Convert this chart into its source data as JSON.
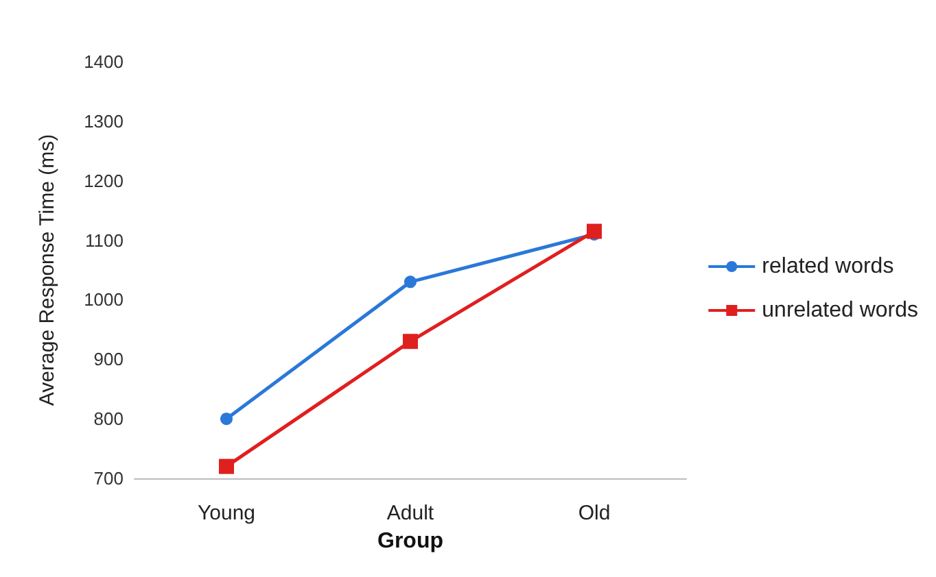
{
  "chart_data": {
    "type": "line",
    "xlabel": "Group",
    "ylabel": "Average Response Time (ms)",
    "categories": [
      "Young",
      "Adult",
      "Old"
    ],
    "series": [
      {
        "name": "related words",
        "color": "#2a78d8",
        "marker": "circle",
        "values": [
          800,
          1030,
          1110
        ]
      },
      {
        "name": "unrelated words",
        "color": "#e01f1f",
        "marker": "square",
        "values": [
          720,
          930,
          1115
        ]
      }
    ],
    "ylim": [
      700,
      1400
    ],
    "yticks": [
      700,
      800,
      900,
      1000,
      1100,
      1200,
      1300,
      1400
    ],
    "grid": false,
    "legend": "right"
  }
}
